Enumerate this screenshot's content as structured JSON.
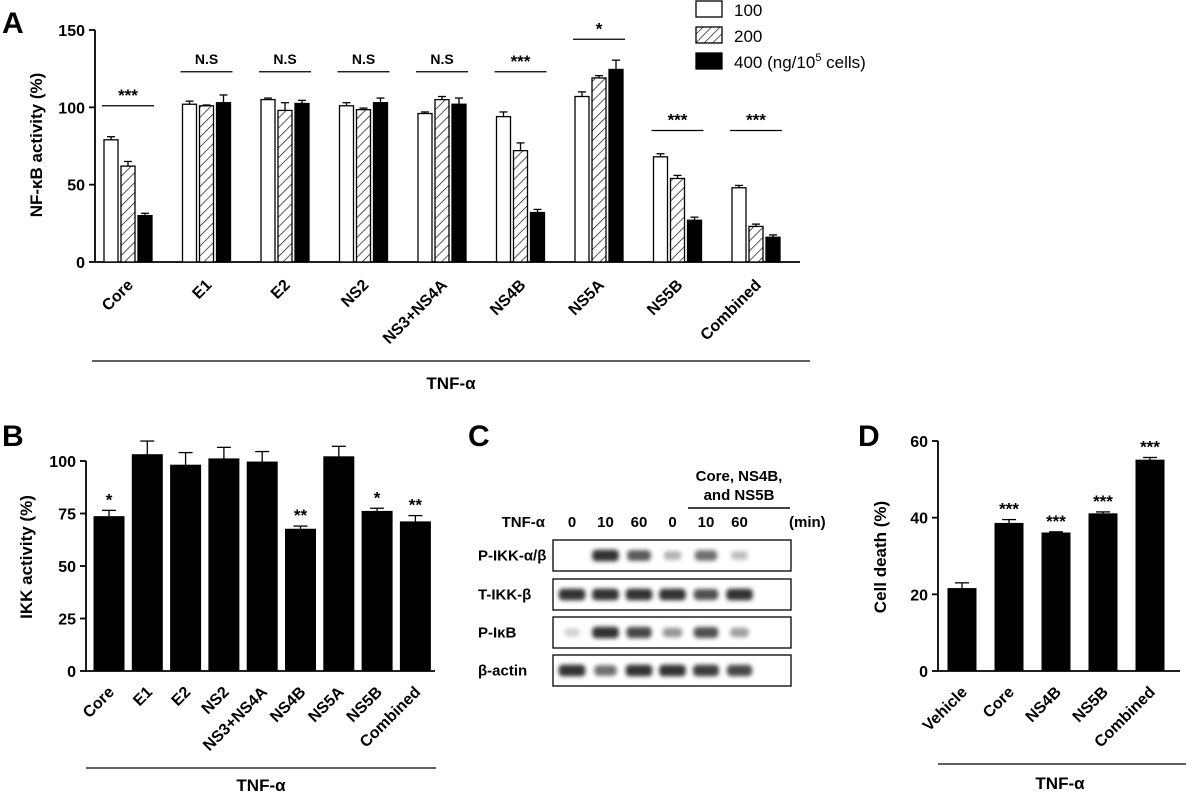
{
  "panels": {
    "A": "A",
    "B": "B",
    "C": "C",
    "D": "D"
  },
  "chart_data": [
    {
      "panel": "A",
      "type": "bar",
      "ylabel": "NF-κB activity (%)",
      "group_label": "TNF-α",
      "ylim": [
        0,
        150
      ],
      "yticks": [
        0,
        50,
        100,
        150
      ],
      "categories": [
        "Core",
        "E1",
        "E2",
        "NS2",
        "NS3+NS4A",
        "NS4B",
        "NS5A",
        "NS5B",
        "Combined"
      ],
      "legend_unit": "(ng/10",
      "legend_sup": "5",
      "legend_tail": " cells)",
      "series": [
        {
          "name": "100",
          "fill": "white",
          "values": [
            79,
            102,
            105,
            101,
            96,
            94,
            107,
            68,
            48
          ],
          "errors": [
            2,
            2,
            1,
            2,
            1,
            3,
            3,
            2,
            1.5
          ]
        },
        {
          "name": "200",
          "fill": "hatch",
          "values": [
            62,
            101,
            98,
            98.5,
            105,
            72,
            119,
            54,
            23
          ],
          "errors": [
            3,
            0.5,
            5,
            1,
            2,
            5,
            1.5,
            2,
            1.5
          ]
        },
        {
          "name": "400",
          "fill": "black",
          "values": [
            30,
            103,
            102.5,
            103,
            102,
            32,
            124.5,
            27,
            16
          ],
          "errors": [
            1.5,
            5,
            2,
            3,
            4,
            2,
            6,
            2,
            1.5
          ]
        }
      ],
      "significance": [
        "***",
        "N.S",
        "N.S",
        "N.S",
        "N.S",
        "***",
        "*",
        "***",
        "***"
      ],
      "sig_y": [
        101,
        123,
        123,
        123,
        123,
        123,
        144,
        85,
        85
      ]
    },
    {
      "panel": "B",
      "type": "bar",
      "ylabel": "IKK activity (%)",
      "group_label": "TNF-α",
      "ylim": [
        0,
        110
      ],
      "yticks": [
        0,
        25,
        50,
        75,
        100
      ],
      "categories": [
        "Core",
        "E1",
        "E2",
        "NS2",
        "NS3+NS4A",
        "NS4B",
        "NS5A",
        "NS5B",
        "Combined"
      ],
      "values": [
        73.5,
        103,
        98,
        101,
        99.5,
        67.5,
        102,
        76,
        71
      ],
      "errors": [
        3,
        6.5,
        6,
        5.5,
        5,
        1.5,
        5,
        1.5,
        3
      ],
      "significance": [
        "*",
        "",
        "",
        "",
        "",
        "**",
        "",
        "*",
        "**"
      ]
    },
    {
      "panel": "C",
      "type": "blot",
      "header": [
        "Core, NS4B,",
        "and NS5B"
      ],
      "row_label": "TNF-α",
      "times": [
        "0",
        "10",
        "60",
        "0",
        "10",
        "60"
      ],
      "unit": "(min)",
      "rows": [
        {
          "label": "P-IKK-α/β",
          "intensity": [
            0,
            0.9,
            0.7,
            0.25,
            0.6,
            0.2
          ]
        },
        {
          "label": "T-IKK-β",
          "intensity": [
            0.9,
            0.9,
            0.9,
            0.9,
            0.75,
            0.9
          ]
        },
        {
          "label": "P-IκB",
          "intensity": [
            0.1,
            0.9,
            0.8,
            0.4,
            0.75,
            0.35
          ]
        },
        {
          "label": "β-actin",
          "intensity": [
            0.9,
            0.6,
            0.9,
            0.9,
            0.85,
            0.8
          ]
        }
      ]
    },
    {
      "panel": "D",
      "type": "bar",
      "ylabel": "Cell death (%)",
      "group_label": "TNF-α",
      "ylim": [
        0,
        60
      ],
      "yticks": [
        0,
        20,
        40,
        60
      ],
      "categories": [
        "Vehicle",
        "Core",
        "NS4B",
        "NS5B",
        "Combined"
      ],
      "values": [
        21.5,
        38.5,
        36,
        41,
        55
      ],
      "errors": [
        1.5,
        1,
        0.3,
        0.5,
        0.7
      ],
      "significance": [
        "",
        "***",
        "***",
        "***",
        "***"
      ]
    }
  ]
}
